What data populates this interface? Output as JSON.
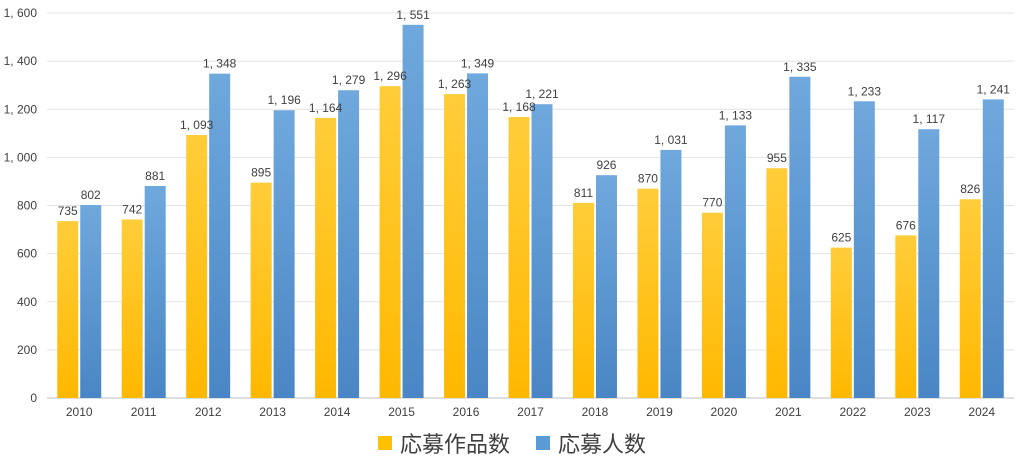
{
  "chart_data": {
    "type": "bar",
    "categories": [
      "2010",
      "2011",
      "2012",
      "2013",
      "2014",
      "2015",
      "2016",
      "2017",
      "2018",
      "2019",
      "2020",
      "2021",
      "2022",
      "2023",
      "2024"
    ],
    "series": [
      {
        "name": "応募作品数",
        "color": "#FFC000",
        "values": [
          735,
          742,
          1093,
          895,
          1164,
          1296,
          1263,
          1168,
          811,
          870,
          770,
          955,
          625,
          676,
          826
        ],
        "labels": [
          "735",
          "742",
          "1, 093",
          "895",
          "1, 164",
          "1, 296",
          "1, 263",
          "1, 168",
          "811",
          "870",
          "770",
          "955",
          "625",
          "676",
          "826"
        ]
      },
      {
        "name": "応募人数",
        "color": "#5B9BD5",
        "values": [
          802,
          881,
          1348,
          1196,
          1279,
          1551,
          1349,
          1221,
          926,
          1031,
          1133,
          1335,
          1233,
          1117,
          1241
        ],
        "labels": [
          "802",
          "881",
          "1, 348",
          "1, 196",
          "1, 279",
          "1, 551",
          "1, 349",
          "1, 221",
          "926",
          "1, 031",
          "1, 133",
          "1, 335",
          "1, 233",
          "1, 117",
          "1, 241"
        ]
      }
    ],
    "ylim": [
      0,
      1600
    ],
    "yticks": [
      0,
      200,
      400,
      600,
      800,
      1000,
      1200,
      1400,
      1600
    ],
    "ytick_labels": [
      "0",
      "200",
      "400",
      "600",
      "800",
      "1, 000",
      "1, 200",
      "1, 400",
      "1, 600"
    ],
    "grid": true,
    "legend_position": "bottom",
    "title": "",
    "xlabel": "",
    "ylabel": ""
  }
}
